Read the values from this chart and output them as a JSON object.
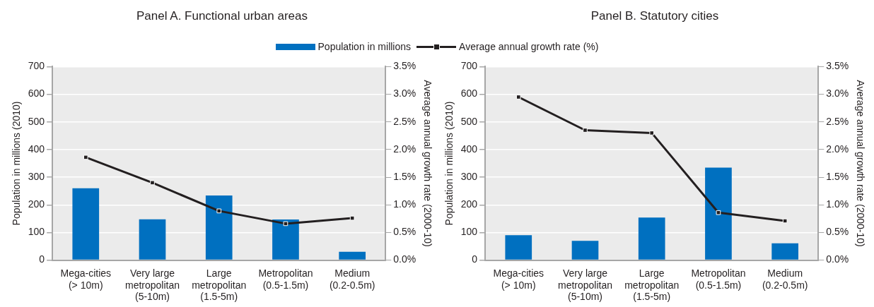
{
  "chart_data": [
    {
      "type": "bar",
      "title": "Panel A. Functional urban areas",
      "ylabel": "Population in millions (2010)",
      "y2label": "Average annual growth rate (2000-10)",
      "categories": [
        "Mega-cities (> 10m)",
        "Very large metropolitan (5-10m)",
        "Large metropolitan (1.5-5m)",
        "Metropolitan (0.5-1.5m)",
        "Medium (0.2-0.5m)"
      ],
      "series": [
        {
          "name": "Population in millions",
          "color": "#0070c0",
          "values": [
            260,
            148,
            234,
            147,
            30
          ]
        },
        {
          "name": "Average annual growth rate (%)",
          "type": "line",
          "axis": "y2",
          "color": "#231f20",
          "values": [
            1.86,
            1.4,
            0.89,
            0.66,
            0.76
          ]
        }
      ],
      "ylim": [
        0,
        700
      ],
      "yticks": [
        0,
        100,
        200,
        300,
        400,
        500,
        600,
        700
      ],
      "y2lim": [
        0,
        3.5
      ],
      "y2ticks": [
        {
          "value": 0,
          "label": "0.0%"
        },
        {
          "value": 0.5,
          "label": "0.5%"
        },
        {
          "value": 1,
          "label": "1.0%"
        },
        {
          "value": 1.5,
          "label": "1.5%"
        },
        {
          "value": 2,
          "label": "2.0%"
        },
        {
          "value": 2.5,
          "label": "2.5%"
        },
        {
          "value": 3,
          "label": "3.0%"
        },
        {
          "value": 3.5,
          "label": "3.5%"
        }
      ],
      "grid": "y",
      "marker": "square",
      "legend": "top"
    },
    {
      "type": "bar",
      "title": "Panel B. Statutory cities",
      "ylabel": "Population in millions (2010)",
      "y2label": "Average annual growth rate (2000-10)",
      "categories": [
        "Mega-cities (> 10m)",
        "Very large metropolitan (5-10m)",
        "Large metropolitan (1.5-5m)",
        "Metropolitan (0.5-1.5m)",
        "Medium (0.2-0.5m)"
      ],
      "series": [
        {
          "color": "#0070c0",
          "values": [
            90,
            70,
            154,
            335,
            61
          ]
        },
        {
          "type": "line",
          "axis": "y2",
          "color": "#231f20",
          "values": [
            2.95,
            2.35,
            2.3,
            0.86,
            0.71
          ]
        }
      ],
      "ylim": [
        0,
        700
      ],
      "yticks": [
        0,
        100,
        200,
        300,
        400,
        500,
        600,
        700
      ],
      "y2lim": [
        0,
        3.5
      ],
      "y2ticks": [
        {
          "value": 0,
          "label": "0.0%"
        },
        {
          "value": 0.5,
          "label": "0.5%"
        },
        {
          "value": 1,
          "label": "1.0%"
        },
        {
          "value": 1.5,
          "label": "1.5%"
        },
        {
          "value": 2,
          "label": "2.0%"
        },
        {
          "value": 2.5,
          "label": "2.5%"
        },
        {
          "value": 3,
          "label": "3.0%"
        },
        {
          "value": 3.5,
          "label": "3.5%"
        }
      ],
      "grid": "y",
      "marker": "square"
    }
  ]
}
